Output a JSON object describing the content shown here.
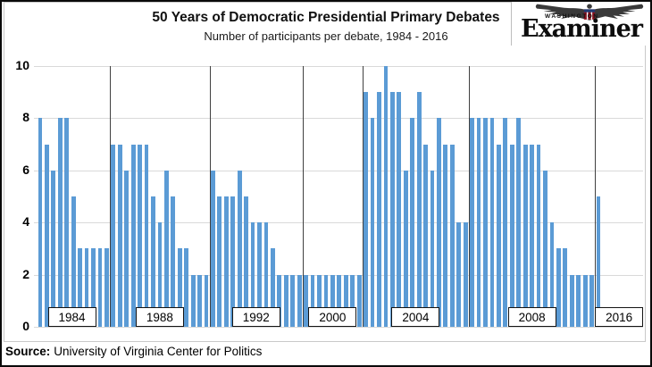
{
  "header": {
    "title": "50 Years of Democratic Presidential Primary Debates",
    "subtitle": "Number of participants per debate, 1984 - 2016"
  },
  "logo": {
    "top_text": "WASHINGTON",
    "name": "Examiner"
  },
  "footer": {
    "source_label": "Source:",
    "source_text": "University of Virginia Center for Politics"
  },
  "chart_data": {
    "type": "bar",
    "title": "50 Years of Democratic Presidential Primary Debates",
    "subtitle": "Number of participants per debate, 1984 - 2016",
    "xlabel": "",
    "ylabel": "",
    "ylim": [
      0,
      10
    ],
    "yticks": [
      0,
      2,
      4,
      6,
      8,
      10
    ],
    "grid": true,
    "legend": false,
    "bar_color": "#5b9bd5",
    "gridline_color": "#d9d9d9",
    "divider_color": "#404040",
    "groups": [
      {
        "year": "1984",
        "values": [
          8,
          7,
          6,
          8,
          8,
          5,
          3,
          3,
          3,
          3,
          3
        ]
      },
      {
        "year": "1988",
        "values": [
          7,
          7,
          6,
          7,
          7,
          7,
          5,
          4,
          6,
          5,
          3,
          3,
          2,
          2,
          2
        ]
      },
      {
        "year": "1992",
        "values": [
          6,
          5,
          5,
          5,
          6,
          5,
          4,
          4,
          4,
          3,
          2,
          2,
          2,
          2
        ]
      },
      {
        "year": "2000",
        "values": [
          2,
          2,
          2,
          2,
          2,
          2,
          2,
          2,
          2
        ]
      },
      {
        "year": "2004",
        "values": [
          9,
          8,
          9,
          10,
          9,
          9,
          6,
          8,
          9,
          7,
          6,
          8,
          7,
          7,
          4,
          4
        ]
      },
      {
        "year": "2008",
        "values": [
          8,
          8,
          8,
          8,
          7,
          8,
          7,
          8,
          7,
          7,
          7,
          6,
          4,
          3,
          3,
          2,
          2,
          2,
          2
        ]
      },
      {
        "year": "2016",
        "values": [
          5
        ]
      }
    ]
  }
}
